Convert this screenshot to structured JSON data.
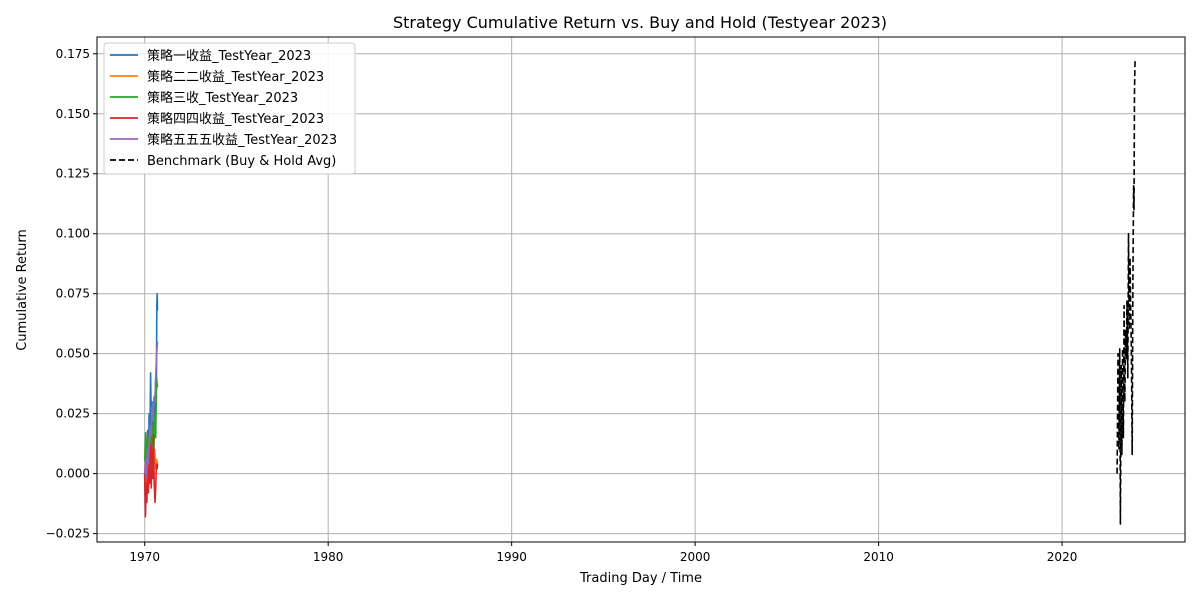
{
  "chart_data": {
    "type": "line",
    "title": "Strategy Cumulative Return vs. Buy and Hold (Testyear 2023)",
    "xlabel": "Trading Day / Time",
    "ylabel": "Cumulative Return",
    "xlim": [
      1967.4,
      2026.7
    ],
    "ylim": [
      -0.0285,
      0.182
    ],
    "x_ticks": [
      1970,
      1980,
      1990,
      2000,
      2010,
      2020
    ],
    "y_ticks": [
      -0.025,
      0.0,
      0.025,
      0.05,
      0.075,
      0.1,
      0.125,
      0.15,
      0.175
    ],
    "y_tick_labels": [
      "−0.025",
      "0.000",
      "0.025",
      "0.050",
      "0.075",
      "0.100",
      "0.125",
      "0.150",
      "0.175"
    ],
    "grid": true,
    "legend_position": "top-left",
    "series": [
      {
        "name": "策略一收益_TestYear_2023",
        "color": "#1f77b4",
        "dash": "solid",
        "x": [
          1970.0,
          1970.04,
          1970.08,
          1970.12,
          1970.16,
          1970.2,
          1970.24,
          1970.28,
          1970.32,
          1970.36,
          1970.4,
          1970.44,
          1970.48,
          1970.52,
          1970.56,
          1970.6,
          1970.64,
          1970.66,
          1970.68,
          1970.7
        ],
        "y": [
          0.0,
          -0.017,
          0.012,
          -0.005,
          0.018,
          0.004,
          0.025,
          0.01,
          0.042,
          0.02,
          0.03,
          0.01,
          0.026,
          0.018,
          0.03,
          0.04,
          0.035,
          0.07,
          0.075,
          0.068
        ]
      },
      {
        "name": "策略二二收益_TestYear_2023",
        "color": "#ff7f0e",
        "dash": "solid",
        "x": [
          1970.0,
          1970.05,
          1970.1,
          1970.15,
          1970.2,
          1970.25,
          1970.3,
          1970.35,
          1970.4,
          1970.45,
          1970.5,
          1970.55,
          1970.6,
          1970.65,
          1970.7
        ],
        "y": [
          0.0,
          0.01,
          -0.004,
          0.012,
          0.002,
          0.016,
          0.004,
          0.02,
          0.008,
          0.014,
          0.004,
          0.01,
          0.002,
          0.006,
          0.004
        ]
      },
      {
        "name": "策略三收_TestYear_2023",
        "color": "#2ca02c",
        "dash": "solid",
        "x": [
          1970.0,
          1970.05,
          1970.1,
          1970.15,
          1970.2,
          1970.25,
          1970.3,
          1970.35,
          1970.4,
          1970.45,
          1970.5,
          1970.55,
          1970.6,
          1970.65,
          1970.7
        ],
        "y": [
          0.005,
          0.017,
          0.002,
          0.015,
          -0.006,
          0.012,
          0.004,
          0.016,
          0.006,
          0.02,
          0.01,
          0.025,
          0.015,
          0.04,
          0.036
        ]
      },
      {
        "name": "策略四四收益_TestYear_2023",
        "color": "#d62728",
        "dash": "solid",
        "x": [
          1970.0,
          1970.04,
          1970.08,
          1970.12,
          1970.16,
          1970.2,
          1970.24,
          1970.28,
          1970.32,
          1970.36,
          1970.4,
          1970.44,
          1970.48,
          1970.52,
          1970.56,
          1970.6,
          1970.64,
          1970.68,
          1970.7
        ],
        "y": [
          0.0,
          -0.018,
          -0.004,
          -0.012,
          0.002,
          -0.008,
          0.006,
          -0.004,
          0.012,
          -0.006,
          0.01,
          -0.002,
          0.016,
          -0.004,
          -0.012,
          -0.006,
          0.004,
          0.002,
          0.004
        ]
      },
      {
        "name": "策略五五五收益_TestYear_2023",
        "color": "#9467bd",
        "dash": "solid",
        "x": [
          1970.0,
          1970.05,
          1970.1,
          1970.15,
          1970.2,
          1970.25,
          1970.3,
          1970.35,
          1970.4,
          1970.45,
          1970.5,
          1970.55,
          1970.6,
          1970.65,
          1970.7
        ],
        "y": [
          0.0,
          0.006,
          -0.002,
          0.01,
          0.004,
          0.014,
          0.02,
          0.016,
          0.028,
          0.022,
          0.032,
          0.03,
          0.04,
          0.05,
          0.055
        ]
      },
      {
        "name": "Benchmark (Buy & Hold Avg)",
        "color": "#000000",
        "dash": "dashed",
        "x": [
          2023.0,
          2023.05,
          2023.1,
          2023.14,
          2023.18,
          2023.22,
          2023.26,
          2023.3,
          2023.34,
          2023.38,
          2023.42,
          2023.46,
          2023.5,
          2023.54,
          2023.58,
          2023.62,
          2023.66,
          2023.7,
          2023.74,
          2023.78,
          2023.82,
          2023.86,
          2023.9,
          2023.92,
          2023.95,
          2023.98
        ],
        "y": [
          0.0,
          0.05,
          0.01,
          0.052,
          -0.021,
          0.045,
          0.008,
          0.052,
          0.015,
          0.07,
          0.03,
          0.06,
          0.048,
          0.072,
          0.04,
          0.1,
          0.06,
          0.09,
          0.07,
          0.05,
          0.008,
          0.08,
          0.12,
          0.11,
          0.16,
          0.173
        ]
      }
    ]
  }
}
